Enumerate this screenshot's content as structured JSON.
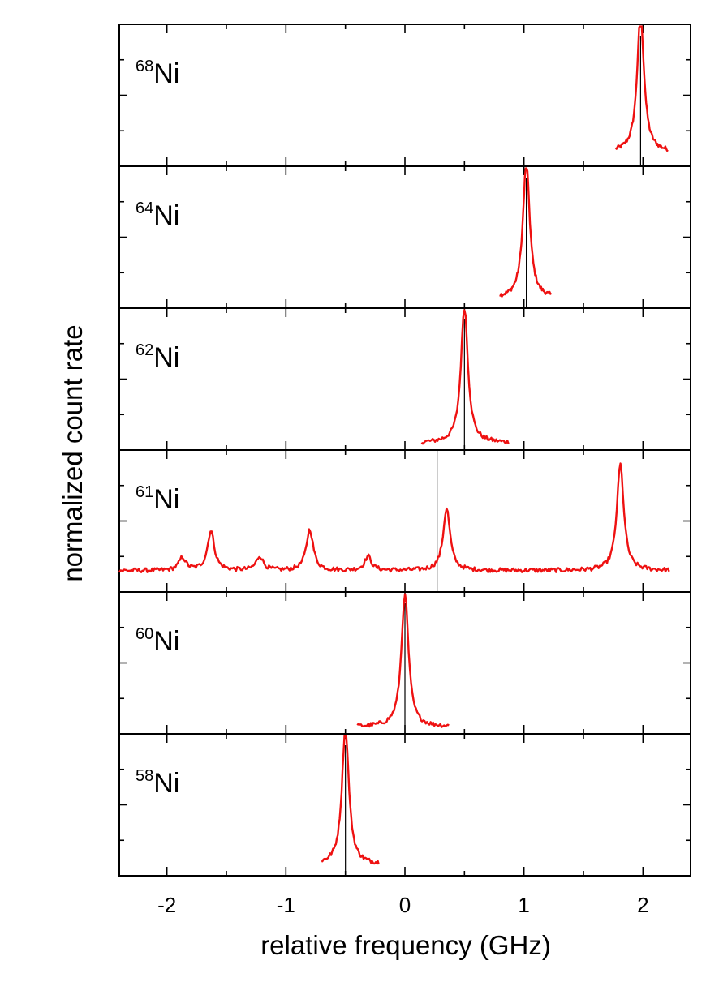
{
  "chart_data": {
    "type": "line",
    "title": "",
    "xlabel": "relative frequency  (GHz)",
    "ylabel": "normalized count rate",
    "xlim": [
      -2.4,
      2.4
    ],
    "x_ticks": [
      -2,
      -1,
      0,
      1,
      2
    ],
    "x_tick_labels": [
      "-2",
      "-1",
      "0",
      "1",
      "2"
    ],
    "line_color": "#ee1111",
    "marker_color": "#000000",
    "panels": [
      {
        "isotope_mass": "68",
        "isotope_element": "Ni",
        "reference_line_x": 1.98,
        "x_range": [
          1.77,
          2.21
        ],
        "peaks": [
          {
            "center": 1.98,
            "height": 0.97,
            "width": 0.035
          }
        ],
        "baseline": 0.1
      },
      {
        "isotope_mass": "64",
        "isotope_element": "Ni",
        "reference_line_x": 1.02,
        "x_range": [
          0.8,
          1.23
        ],
        "peaks": [
          {
            "center": 1.02,
            "height": 0.95,
            "width": 0.035
          }
        ],
        "baseline": 0.07
      },
      {
        "isotope_mass": "62",
        "isotope_element": "Ni",
        "reference_line_x": 0.5,
        "x_range": [
          0.14,
          0.87
        ],
        "peaks": [
          {
            "center": 0.5,
            "height": 0.97,
            "width": 0.035
          }
        ],
        "baseline": 0.05
      },
      {
        "isotope_mass": "61",
        "isotope_element": "Ni",
        "reference_line_x": 0.27,
        "reference_line_full_height": true,
        "x_range": [
          -2.4,
          2.22
        ],
        "peaks": [
          {
            "center": -1.87,
            "height": 0.09,
            "width": 0.035
          },
          {
            "center": -1.63,
            "height": 0.28,
            "width": 0.035
          },
          {
            "center": -1.22,
            "height": 0.1,
            "width": 0.035
          },
          {
            "center": -0.8,
            "height": 0.29,
            "width": 0.035
          },
          {
            "center": -0.31,
            "height": 0.1,
            "width": 0.035
          },
          {
            "center": 0.35,
            "height": 0.44,
            "width": 0.035
          },
          {
            "center": 1.81,
            "height": 0.75,
            "width": 0.035
          }
        ],
        "baseline": 0.15
      },
      {
        "isotope_mass": "60",
        "isotope_element": "Ni",
        "reference_line_x": 0.0,
        "x_range": [
          -0.4,
          0.37
        ],
        "peaks": [
          {
            "center": 0.0,
            "height": 0.95,
            "width": 0.035
          }
        ],
        "baseline": 0.05
      },
      {
        "isotope_mass": "58",
        "isotope_element": "Ni",
        "reference_line_x": -0.5,
        "x_range": [
          -0.7,
          -0.22
        ],
        "peaks": [
          {
            "center": -0.5,
            "height": 0.96,
            "width": 0.035
          }
        ],
        "baseline": 0.08
      }
    ]
  }
}
